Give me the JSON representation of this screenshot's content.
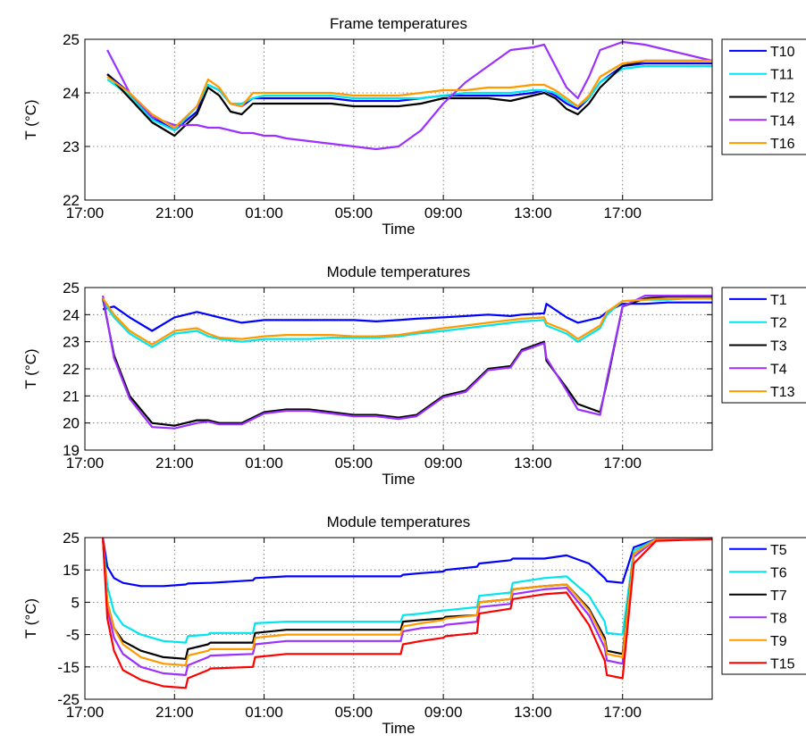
{
  "figure": {
    "xlabel": "Time",
    "ylabel": "T (°C)",
    "xtick_labels": [
      "17:00",
      "21:00",
      "01:00",
      "05:00",
      "09:00",
      "13:00",
      "17:00"
    ]
  },
  "chart_data": [
    {
      "type": "line",
      "title": "Frame temperatures",
      "xlabel": "Time",
      "ylabel": "T (°C)",
      "x_unit": "hours since 17:00",
      "xlim": [
        0,
        28
      ],
      "ylim": [
        22,
        25
      ],
      "yticks": [
        22,
        23,
        24,
        25
      ],
      "grid": true,
      "legend_position": "outside-right",
      "x": [
        1,
        2,
        3,
        4,
        5,
        5.5,
        6,
        6.5,
        7,
        7.5,
        8,
        8.5,
        9,
        10,
        11,
        12,
        13,
        14,
        15,
        16,
        17,
        18,
        19,
        20,
        20.5,
        21,
        21.5,
        22,
        22.5,
        23,
        24,
        25,
        26,
        27,
        28
      ],
      "series": [
        {
          "name": "T10",
          "color": "#0000ff",
          "values": [
            24.35,
            24.0,
            23.55,
            23.3,
            23.65,
            24.15,
            24.05,
            23.8,
            23.75,
            23.9,
            23.9,
            23.9,
            23.9,
            23.9,
            23.9,
            23.85,
            23.85,
            23.85,
            23.9,
            23.95,
            23.95,
            23.95,
            23.95,
            24.0,
            24.05,
            23.95,
            23.8,
            23.7,
            23.9,
            24.2,
            24.5,
            24.55,
            24.55,
            24.55,
            24.55
          ]
        },
        {
          "name": "T11",
          "color": "#00e5ee",
          "values": [
            24.25,
            23.95,
            23.5,
            23.3,
            23.75,
            24.15,
            24.05,
            23.8,
            23.8,
            23.9,
            23.95,
            23.95,
            23.95,
            23.95,
            23.95,
            23.9,
            23.9,
            23.9,
            23.9,
            23.95,
            24.0,
            24.0,
            24.0,
            24.05,
            24.05,
            24.0,
            23.85,
            23.75,
            23.9,
            24.2,
            24.45,
            24.5,
            24.5,
            24.5,
            24.5
          ]
        },
        {
          "name": "T12",
          "color": "#000000",
          "values": [
            24.35,
            23.9,
            23.45,
            23.2,
            23.6,
            24.1,
            23.95,
            23.65,
            23.6,
            23.8,
            23.8,
            23.8,
            23.8,
            23.8,
            23.8,
            23.75,
            23.75,
            23.75,
            23.8,
            23.9,
            23.9,
            23.9,
            23.85,
            23.95,
            24.0,
            23.9,
            23.7,
            23.6,
            23.8,
            24.1,
            24.5,
            24.6,
            24.6,
            24.6,
            24.6
          ]
        },
        {
          "name": "T14",
          "color": "#9b30ff",
          "values": [
            24.8,
            24.0,
            23.55,
            23.4,
            23.4,
            23.35,
            23.35,
            23.3,
            23.25,
            23.25,
            23.2,
            23.2,
            23.15,
            23.1,
            23.05,
            23.0,
            22.95,
            23.0,
            23.3,
            23.8,
            24.2,
            24.5,
            24.8,
            24.85,
            24.9,
            24.5,
            24.1,
            23.9,
            24.3,
            24.8,
            24.95,
            24.9,
            24.8,
            24.7,
            24.6
          ]
        },
        {
          "name": "T16",
          "color": "#ff9900",
          "values": [
            24.3,
            24.0,
            23.6,
            23.35,
            23.75,
            24.25,
            24.1,
            23.8,
            23.75,
            24.0,
            24.0,
            24.0,
            24.0,
            24.0,
            24.0,
            23.95,
            23.95,
            23.95,
            24.0,
            24.05,
            24.05,
            24.1,
            24.1,
            24.15,
            24.15,
            24.05,
            23.9,
            23.75,
            23.95,
            24.3,
            24.55,
            24.6,
            24.6,
            24.6,
            24.6
          ]
        }
      ]
    },
    {
      "type": "line",
      "title": "Module temperatures",
      "xlabel": "Time",
      "ylabel": "T (°C)",
      "x_unit": "hours since 17:00",
      "xlim": [
        0,
        28
      ],
      "ylim": [
        19,
        25
      ],
      "yticks": [
        19,
        20,
        21,
        22,
        23,
        24,
        25
      ],
      "grid": true,
      "legend_position": "outside-right",
      "x": [
        0.8,
        1.3,
        2,
        3,
        4,
        5,
        5.5,
        6,
        7,
        8,
        9,
        10,
        11,
        12,
        13,
        14,
        14.8,
        16,
        17,
        18,
        19,
        19.5,
        20.5,
        20.6,
        21.5,
        22,
        23,
        23.3,
        24,
        25,
        26,
        27,
        28
      ],
      "series": [
        {
          "name": "T1",
          "color": "#0000ff",
          "values": [
            24.2,
            24.3,
            23.9,
            23.4,
            23.9,
            24.1,
            24.0,
            23.9,
            23.7,
            23.8,
            23.8,
            23.8,
            23.8,
            23.8,
            23.75,
            23.8,
            23.85,
            23.9,
            23.95,
            24.0,
            23.95,
            24.0,
            24.05,
            24.4,
            23.9,
            23.7,
            23.9,
            24.1,
            24.4,
            24.4,
            24.45,
            24.45,
            24.45
          ]
        },
        {
          "name": "T2",
          "color": "#00e5ee",
          "values": [
            24.5,
            23.9,
            23.3,
            22.8,
            23.3,
            23.4,
            23.2,
            23.1,
            23.0,
            23.1,
            23.1,
            23.1,
            23.15,
            23.15,
            23.15,
            23.2,
            23.3,
            23.4,
            23.5,
            23.6,
            23.7,
            23.75,
            23.8,
            23.6,
            23.3,
            23.0,
            23.5,
            24.0,
            24.5,
            24.55,
            24.55,
            24.6,
            24.6
          ]
        },
        {
          "name": "T3",
          "color": "#000000",
          "values": [
            24.6,
            22.5,
            21.0,
            20.0,
            19.9,
            20.1,
            20.1,
            20.0,
            20.0,
            20.4,
            20.5,
            20.5,
            20.4,
            20.3,
            20.3,
            20.2,
            20.3,
            21.0,
            21.2,
            22.0,
            22.1,
            22.7,
            23.0,
            22.3,
            21.3,
            20.7,
            20.4,
            21.5,
            24.3,
            24.6,
            24.65,
            24.65,
            24.65
          ]
        },
        {
          "name": "T4",
          "color": "#9b30ff",
          "values": [
            24.7,
            22.4,
            20.9,
            19.85,
            19.8,
            20.0,
            20.05,
            19.95,
            19.95,
            20.35,
            20.45,
            20.45,
            20.35,
            20.25,
            20.25,
            20.15,
            20.25,
            20.95,
            21.15,
            21.95,
            22.05,
            22.65,
            22.95,
            22.4,
            21.2,
            20.5,
            20.3,
            21.6,
            24.3,
            24.7,
            24.7,
            24.7,
            24.7
          ]
        },
        {
          "name": "T13",
          "color": "#ff9900",
          "values": [
            24.6,
            24.0,
            23.4,
            22.9,
            23.4,
            23.5,
            23.3,
            23.15,
            23.1,
            23.2,
            23.25,
            23.25,
            23.25,
            23.2,
            23.2,
            23.25,
            23.35,
            23.5,
            23.6,
            23.7,
            23.8,
            23.85,
            23.9,
            23.7,
            23.4,
            23.1,
            23.6,
            24.1,
            24.5,
            24.55,
            24.6,
            24.6,
            24.6
          ]
        }
      ]
    },
    {
      "type": "line",
      "title": "Module temperatures",
      "xlabel": "Time",
      "ylabel": "T (°C)",
      "x_unit": "hours since 17:00",
      "xlim": [
        0,
        28
      ],
      "ylim": [
        -25,
        25
      ],
      "yticks": [
        -25,
        -15,
        -5,
        5,
        15,
        25
      ],
      "grid": true,
      "legend_position": "outside-right",
      "x": [
        0.8,
        1.0,
        1.3,
        1.7,
        2.5,
        3.5,
        4.5,
        4.6,
        5.5,
        5.6,
        7.5,
        7.6,
        9,
        11,
        13,
        14.1,
        14.2,
        15,
        16,
        16.1,
        17.5,
        17.6,
        19,
        19.1,
        20.5,
        21.5,
        22.5,
        23.2,
        23.3,
        24,
        24.5,
        25.5,
        28
      ],
      "series": [
        {
          "name": "T5",
          "color": "#0000ff",
          "values": [
            25,
            16,
            12.5,
            11,
            10,
            10,
            10.5,
            10.8,
            11,
            11,
            11.8,
            12.5,
            13,
            13,
            13,
            13,
            13.5,
            14,
            14.5,
            15,
            16,
            17,
            18,
            18.5,
            18.5,
            19.5,
            17.0,
            12.5,
            11.5,
            11,
            22,
            24.5,
            24.5
          ]
        },
        {
          "name": "T6",
          "color": "#00e5ee",
          "values": [
            25,
            10,
            2,
            -2,
            -5,
            -7,
            -7.5,
            -5.5,
            -5,
            -4.5,
            -4.5,
            -1.5,
            -1,
            -1,
            -1,
            -1,
            1,
            1.5,
            2.5,
            2.5,
            3.5,
            7,
            8,
            11,
            12.5,
            13,
            7,
            -1,
            -4.5,
            -5,
            21,
            24.5,
            24.5
          ]
        },
        {
          "name": "T7",
          "color": "#000000",
          "values": [
            25,
            5,
            -3,
            -7,
            -10,
            -12,
            -12.5,
            -9.5,
            -8,
            -7.5,
            -7.5,
            -4.5,
            -3.5,
            -3.5,
            -3.5,
            -3.5,
            -1,
            -0.5,
            0,
            0.5,
            1,
            5,
            6,
            9,
            10,
            10.5,
            3,
            -6,
            -10,
            -11,
            20,
            24.5,
            24.5
          ]
        },
        {
          "name": "T8",
          "color": "#9b30ff",
          "values": [
            25,
            3,
            -6,
            -11,
            -15,
            -17,
            -17.5,
            -14.5,
            -12,
            -11.5,
            -11,
            -8,
            -7,
            -7,
            -7,
            -7,
            -4,
            -3,
            -2.5,
            -2,
            -1,
            3.5,
            4.5,
            7.5,
            9,
            9.5,
            1,
            -9,
            -13,
            -14,
            19,
            24.5,
            24.5
          ]
        },
        {
          "name": "T9",
          "color": "#ff9900",
          "values": [
            25,
            5,
            -3,
            -8,
            -12,
            -14,
            -14.5,
            -11.5,
            -10,
            -9.5,
            -9.5,
            -6,
            -5,
            -5,
            -5,
            -5,
            -2.5,
            -1.5,
            -0.5,
            0,
            1,
            5,
            6,
            9,
            10,
            10.5,
            2.5,
            -7,
            -11,
            -12,
            20,
            24.5,
            24.5
          ]
        },
        {
          "name": "T15",
          "color": "#ff0000",
          "values": [
            25,
            0,
            -10,
            -16,
            -19,
            -21,
            -21.5,
            -18.5,
            -16,
            -15.5,
            -15,
            -12,
            -11,
            -11,
            -11,
            -11,
            -8,
            -7,
            -6,
            -5.5,
            -4.5,
            1.5,
            3,
            6,
            7.5,
            8,
            -2,
            -13,
            -17.5,
            -18.5,
            17,
            24,
            24.5
          ]
        }
      ]
    }
  ]
}
